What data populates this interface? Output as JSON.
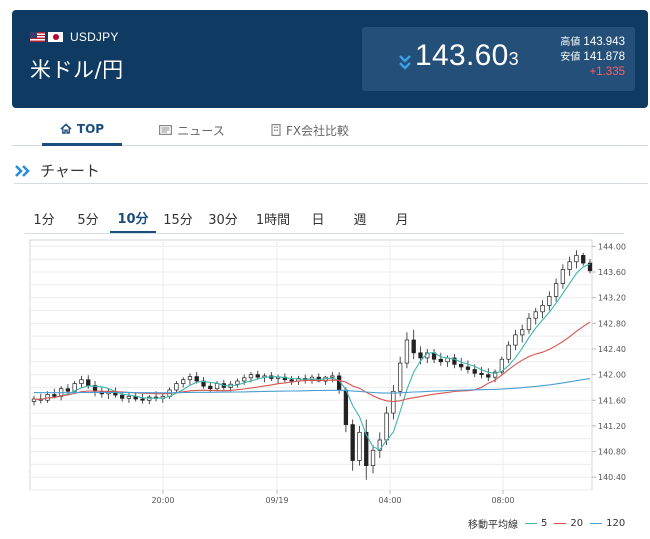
{
  "header": {
    "pair_code": "USDJPY",
    "pair_name": "米ドル/円",
    "price_main": "143.60",
    "price_small": "3",
    "high_label": "高値",
    "high_value": "143.943",
    "low_label": "安値",
    "low_value": "141.878",
    "change": "+1.335",
    "colors": {
      "bg": "#0f3a62",
      "box": "#244f78",
      "change": "#ff5d6a",
      "down_arrow": "#3aa0e8"
    }
  },
  "nav_tabs": [
    {
      "label": "TOP",
      "icon": "home-icon"
    },
    {
      "label": "ニュース",
      "icon": "news-icon"
    },
    {
      "label": "FX会社比較",
      "icon": "building-icon"
    }
  ],
  "section": {
    "title": "チャート",
    "icon": "double-chevron-right-icon"
  },
  "timeframes": [
    "1分",
    "5分",
    "10分",
    "15分",
    "30分",
    "1時間",
    "日",
    "週",
    "月"
  ],
  "active_timeframe": "10分",
  "chart_data": {
    "type": "candlestick",
    "y_ticks": [
      "144.00",
      "143.60",
      "143.20",
      "142.80",
      "142.40",
      "142.00",
      "141.60",
      "141.20",
      "140.80",
      "140.40"
    ],
    "ylim": [
      140.2,
      144.1
    ],
    "x_ticks": [
      "20:00",
      "09/19",
      "04:00",
      "08:00"
    ],
    "grid": true,
    "ohlc": [
      [
        141.58,
        141.67,
        141.52,
        141.62
      ],
      [
        141.62,
        141.7,
        141.55,
        141.6
      ],
      [
        141.6,
        141.74,
        141.56,
        141.69
      ],
      [
        141.69,
        141.78,
        141.63,
        141.66
      ],
      [
        141.66,
        141.82,
        141.6,
        141.78
      ],
      [
        141.78,
        141.85,
        141.7,
        141.74
      ],
      [
        141.74,
        141.9,
        141.7,
        141.86
      ],
      [
        141.86,
        141.98,
        141.8,
        141.92
      ],
      [
        141.92,
        141.99,
        141.78,
        141.83
      ],
      [
        141.83,
        141.9,
        141.66,
        141.74
      ],
      [
        141.74,
        141.8,
        141.64,
        141.7
      ],
      [
        141.7,
        141.78,
        141.62,
        141.73
      ],
      [
        141.73,
        141.8,
        141.64,
        141.68
      ],
      [
        141.68,
        141.74,
        141.58,
        141.63
      ],
      [
        141.63,
        141.72,
        141.56,
        141.66
      ],
      [
        141.66,
        141.72,
        141.58,
        141.62
      ],
      [
        141.62,
        141.7,
        141.55,
        141.6
      ],
      [
        141.6,
        141.68,
        141.54,
        141.65
      ],
      [
        141.65,
        141.74,
        141.58,
        141.63
      ],
      [
        141.63,
        141.7,
        141.56,
        141.66
      ],
      [
        141.66,
        141.8,
        141.62,
        141.76
      ],
      [
        141.76,
        141.9,
        141.72,
        141.86
      ],
      [
        141.86,
        141.96,
        141.8,
        141.92
      ],
      [
        141.92,
        142.02,
        141.84,
        141.97
      ],
      [
        141.97,
        142.04,
        141.86,
        141.9
      ],
      [
        141.9,
        141.96,
        141.78,
        141.82
      ],
      [
        141.82,
        141.88,
        141.72,
        141.78
      ],
      [
        141.78,
        141.9,
        141.74,
        141.86
      ],
      [
        141.86,
        141.92,
        141.76,
        141.8
      ],
      [
        141.8,
        141.9,
        141.74,
        141.85
      ],
      [
        141.85,
        141.94,
        141.8,
        141.9
      ],
      [
        141.9,
        142.0,
        141.84,
        141.95
      ],
      [
        141.95,
        142.04,
        141.88,
        142.0
      ],
      [
        142.0,
        142.06,
        141.92,
        141.96
      ],
      [
        141.96,
        142.02,
        141.88,
        141.98
      ],
      [
        141.98,
        142.04,
        141.9,
        141.94
      ],
      [
        141.94,
        142.0,
        141.86,
        141.96
      ],
      [
        141.96,
        142.02,
        141.88,
        141.92
      ],
      [
        141.92,
        141.98,
        141.84,
        141.9
      ],
      [
        141.9,
        141.98,
        141.84,
        141.94
      ],
      [
        141.94,
        142.0,
        141.86,
        141.92
      ],
      [
        141.92,
        142.0,
        141.86,
        141.96
      ],
      [
        141.96,
        142.02,
        141.88,
        141.9
      ],
      [
        141.9,
        141.98,
        141.84,
        141.96
      ],
      [
        141.96,
        142.04,
        141.88,
        141.98
      ],
      [
        141.98,
        142.04,
        141.7,
        141.76
      ],
      [
        141.76,
        141.8,
        141.1,
        141.22
      ],
      [
        141.22,
        141.3,
        140.5,
        140.66
      ],
      [
        140.66,
        141.2,
        140.58,
        141.1
      ],
      [
        141.1,
        141.3,
        140.36,
        140.58
      ],
      [
        140.58,
        140.9,
        140.46,
        140.82
      ],
      [
        140.82,
        141.1,
        140.7,
        140.98
      ],
      [
        140.98,
        141.5,
        140.9,
        141.4
      ],
      [
        141.4,
        141.84,
        141.3,
        141.74
      ],
      [
        141.74,
        142.28,
        141.66,
        142.18
      ],
      [
        142.18,
        142.66,
        142.1,
        142.54
      ],
      [
        142.54,
        142.7,
        142.24,
        142.34
      ],
      [
        142.34,
        142.44,
        142.16,
        142.26
      ],
      [
        142.26,
        142.4,
        142.18,
        142.34
      ],
      [
        142.34,
        142.4,
        142.18,
        142.24
      ],
      [
        142.24,
        142.34,
        142.14,
        142.2
      ],
      [
        142.2,
        142.3,
        142.12,
        142.26
      ],
      [
        142.26,
        142.32,
        142.1,
        142.16
      ],
      [
        142.16,
        142.26,
        142.06,
        142.12
      ],
      [
        142.12,
        142.22,
        142.02,
        142.08
      ],
      [
        142.08,
        142.16,
        141.96,
        142.02
      ],
      [
        142.02,
        142.12,
        141.94,
        142.0
      ],
      [
        142.0,
        142.1,
        141.9,
        141.96
      ],
      [
        141.96,
        142.08,
        141.88,
        142.04
      ],
      [
        142.04,
        142.28,
        142.0,
        142.24
      ],
      [
        142.24,
        142.52,
        142.18,
        142.46
      ],
      [
        142.46,
        142.7,
        142.38,
        142.62
      ],
      [
        142.62,
        142.78,
        142.5,
        142.7
      ],
      [
        142.7,
        142.96,
        142.64,
        142.88
      ],
      [
        142.88,
        143.04,
        142.78,
        142.98
      ],
      [
        142.98,
        143.16,
        142.88,
        143.08
      ],
      [
        143.08,
        143.3,
        143.0,
        143.22
      ],
      [
        143.22,
        143.5,
        143.14,
        143.42
      ],
      [
        143.42,
        143.72,
        143.34,
        143.64
      ],
      [
        143.64,
        143.84,
        143.54,
        143.76
      ],
      [
        143.76,
        143.94,
        143.66,
        143.86
      ],
      [
        143.86,
        143.9,
        143.7,
        143.74
      ],
      [
        143.74,
        143.8,
        143.58,
        143.62
      ]
    ],
    "ma": [
      {
        "name": "5",
        "color": "#3fb6ae"
      },
      {
        "name": "20",
        "color": "#d9534f"
      },
      {
        "name": "120",
        "color": "#4a9fd0"
      }
    ],
    "legend_label": "移動平均線"
  }
}
